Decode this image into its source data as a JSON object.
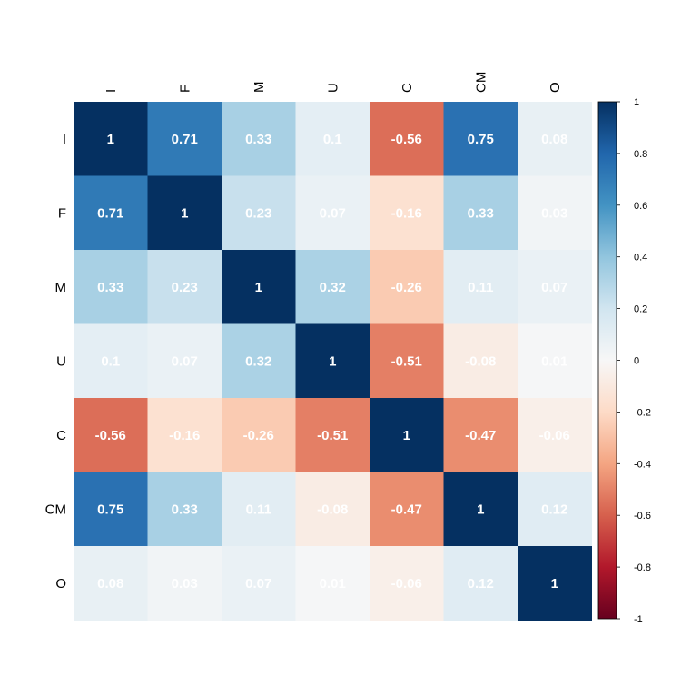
{
  "chart_data": {
    "type": "heatmap",
    "title": "",
    "variables": [
      "I",
      "F",
      "M",
      "U",
      "C",
      "CM",
      "O"
    ],
    "matrix": [
      [
        1,
        0.71,
        0.33,
        0.1,
        -0.56,
        0.75,
        0.08
      ],
      [
        0.71,
        1,
        0.23,
        0.07,
        -0.16,
        0.33,
        0.03
      ],
      [
        0.33,
        0.23,
        1,
        0.32,
        -0.26,
        0.11,
        0.07
      ],
      [
        0.1,
        0.07,
        0.32,
        1,
        -0.51,
        -0.08,
        0.01
      ],
      [
        -0.56,
        -0.16,
        -0.26,
        -0.51,
        1,
        -0.47,
        -0.06
      ],
      [
        0.75,
        0.33,
        0.11,
        -0.08,
        -0.47,
        1,
        0.12
      ],
      [
        0.08,
        0.03,
        0.07,
        0.01,
        -0.06,
        0.12,
        1
      ]
    ],
    "colorbar": {
      "range": [
        -1,
        1
      ],
      "ticks": [
        "1",
        "0.8",
        "0.6",
        "0.4",
        "0.2",
        "0",
        "-0.2",
        "-0.4",
        "-0.6",
        "-0.8",
        "-1"
      ]
    },
    "colors": {
      "strong_negative": "#67001F",
      "negative": "#D6604D",
      "neutral": "#F7F7F7",
      "positive": "#4393C3",
      "strong_positive": "#053061"
    },
    "legend": "right",
    "grid": false
  }
}
